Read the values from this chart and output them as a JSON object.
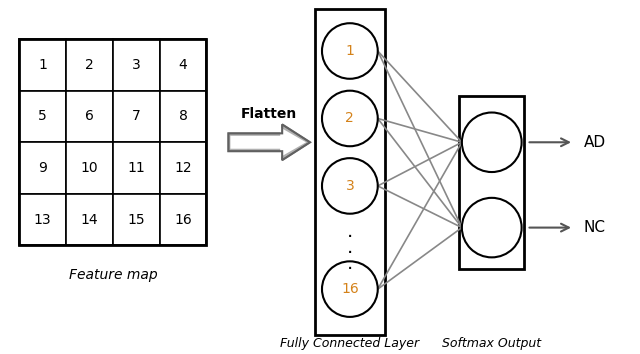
{
  "grid_values": [
    [
      1,
      2,
      3,
      4
    ],
    [
      5,
      6,
      7,
      8
    ],
    [
      9,
      10,
      11,
      12
    ],
    [
      13,
      14,
      15,
      16
    ]
  ],
  "output_labels": [
    "AD",
    "NC"
  ],
  "flatten_label": "Flatten",
  "fc_label": "Fully Connected Layer",
  "sm_label": "Softmax Output",
  "feature_map_label": "Feature map",
  "bg_color": "#ffffff",
  "grid_color": "#000000",
  "node_edge_color": "#000000",
  "node_face_color": "#ffffff",
  "node_label_color": "#d4821a",
  "connection_color": "#888888",
  "rect_color": "#000000"
}
